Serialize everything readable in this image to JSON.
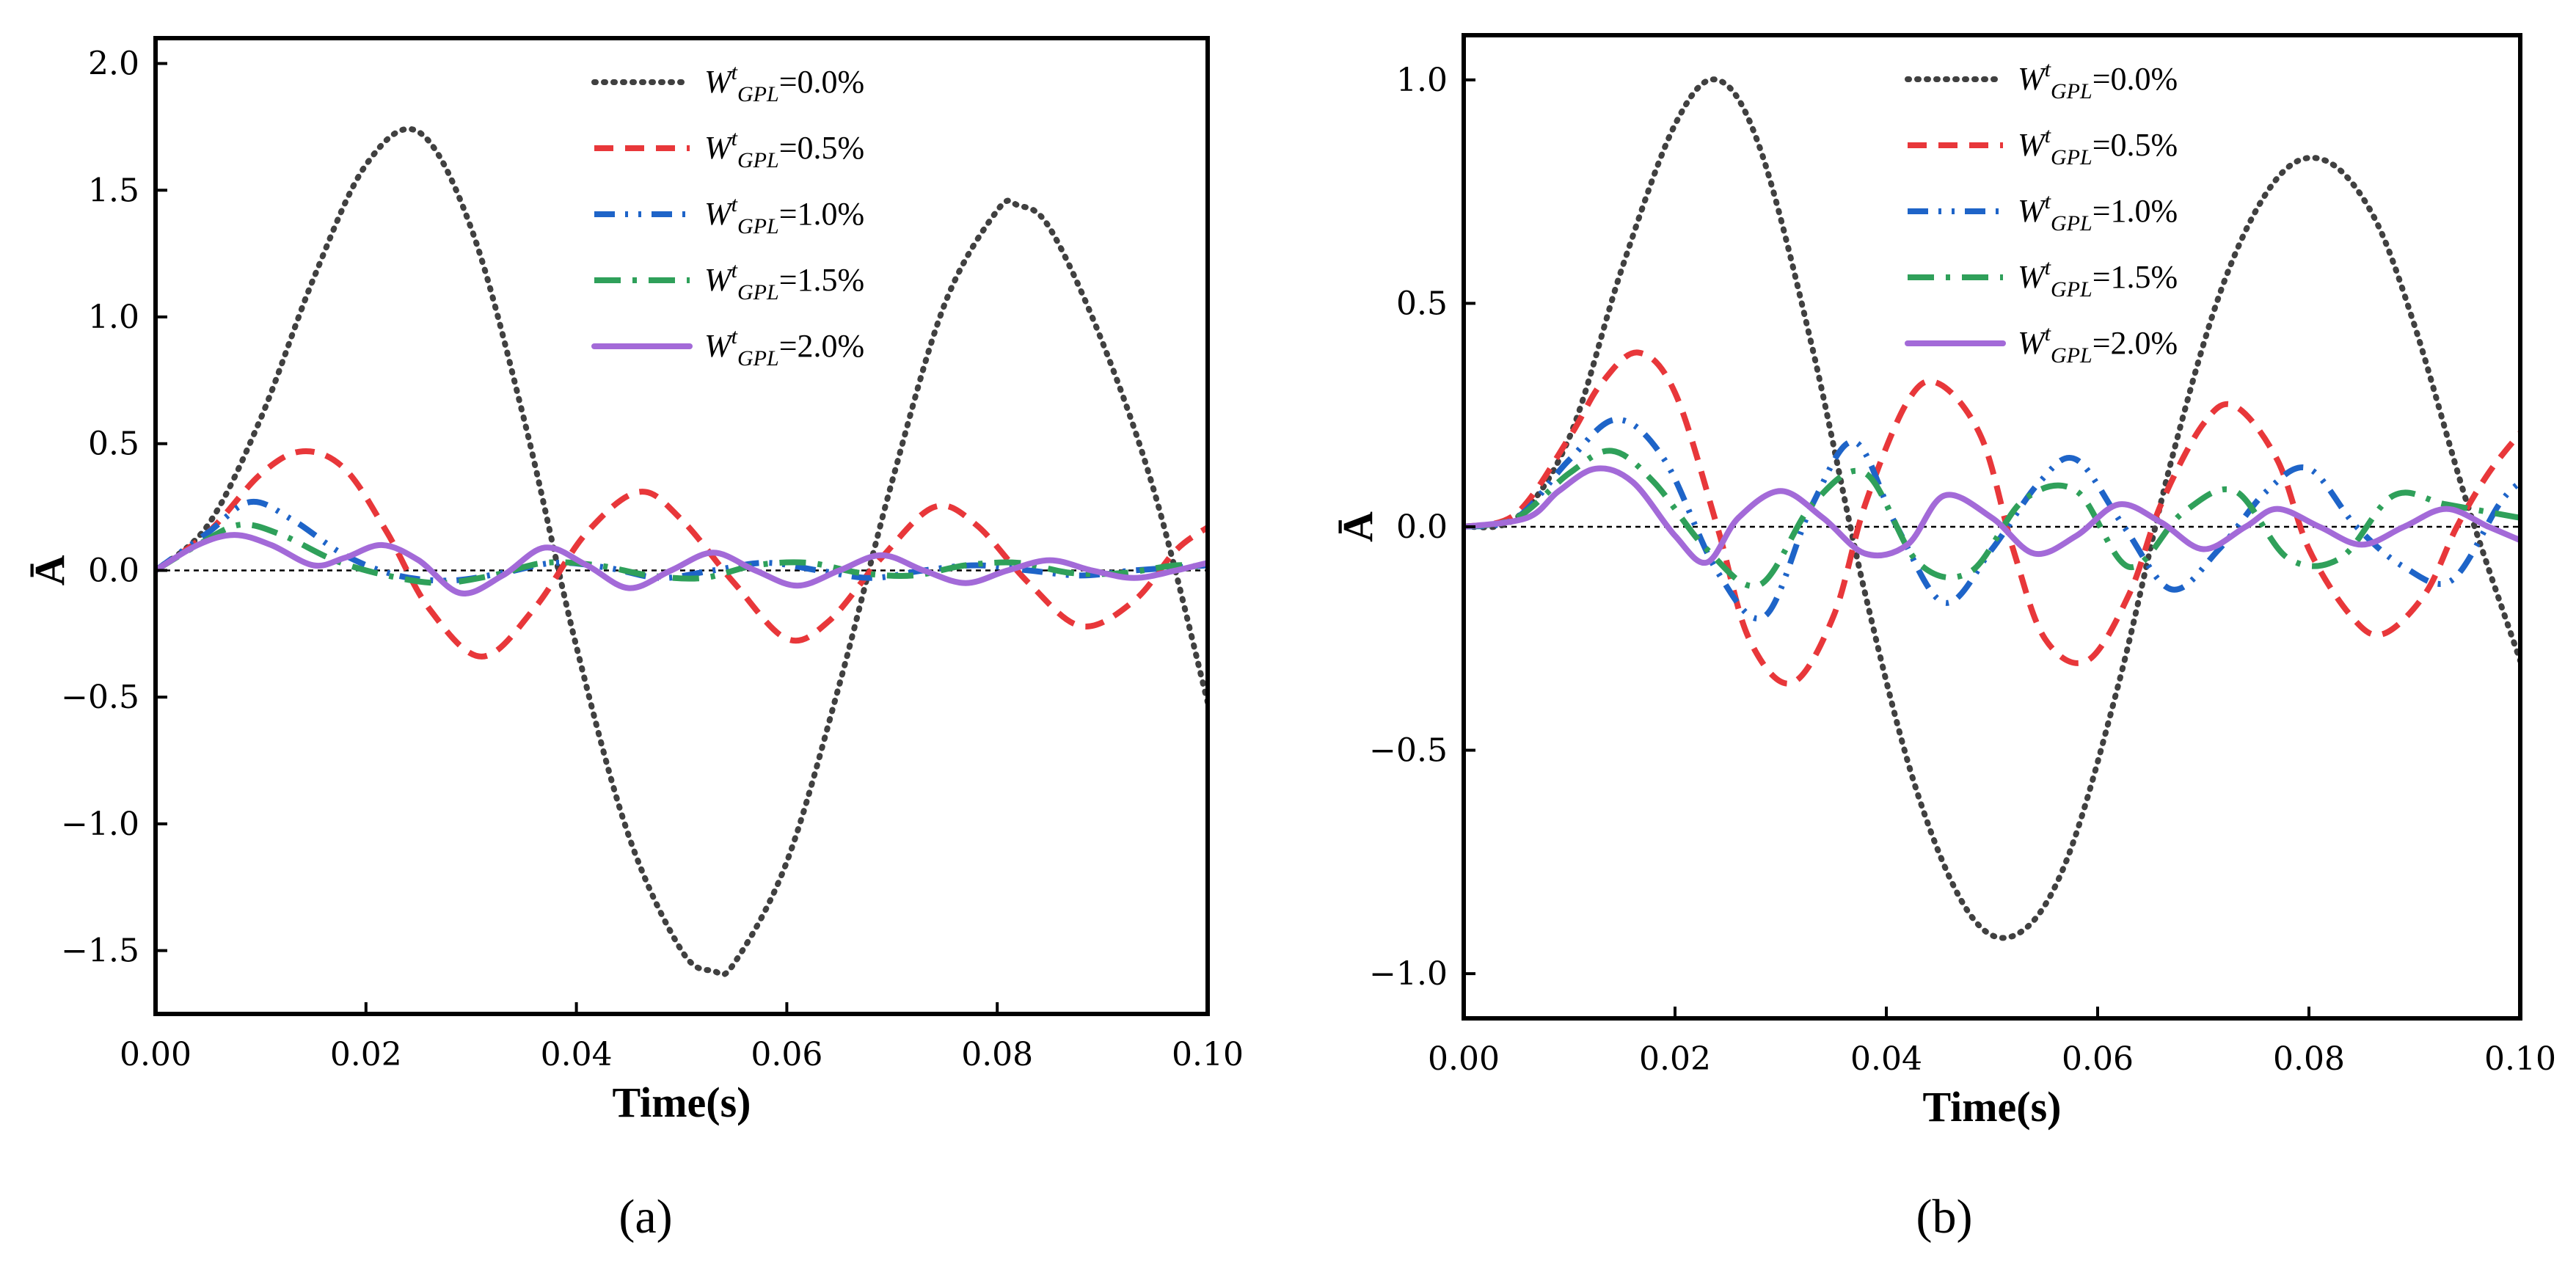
{
  "chart_data": [
    {
      "panel_label": "(a)",
      "type": "line",
      "xlabel": "Time(s)",
      "ylabel": "Ā",
      "xlim": [
        0.0,
        0.1
      ],
      "ylim": [
        -1.75,
        2.1
      ],
      "xticks": [
        "0.00",
        "0.02",
        "0.04",
        "0.06",
        "0.08",
        "0.10"
      ],
      "yticks": [
        "2.0",
        "1.5",
        "1.0",
        "0.5",
        "0.0",
        "-0.5",
        "-1.0",
        "-1.5"
      ],
      "zero_reference_line": true,
      "legend_placement": "top-center",
      "series": [
        {
          "name": "W^t_GPL=0.0%",
          "base": "W",
          "sup": "t",
          "sub": "GPL",
          "suffix": "=0.0%",
          "color": "#404040",
          "style": "dotted",
          "x": [
            0.0,
            0.005,
            0.01,
            0.015,
            0.02,
            0.025,
            0.03,
            0.035,
            0.04,
            0.045,
            0.05,
            0.053,
            0.055,
            0.06,
            0.065,
            0.07,
            0.075,
            0.08,
            0.082,
            0.085,
            0.09,
            0.095,
            0.1
          ],
          "y": [
            0.0,
            0.18,
            0.6,
            1.15,
            1.6,
            1.73,
            1.35,
            0.6,
            -0.3,
            -1.05,
            -1.5,
            -1.58,
            -1.55,
            -1.15,
            -0.45,
            0.35,
            1.05,
            1.42,
            1.44,
            1.35,
            0.9,
            0.3,
            -0.52
          ]
        },
        {
          "name": "W^t_GPL=0.5%",
          "base": "W",
          "sup": "t",
          "sub": "GPL",
          "suffix": "=0.5%",
          "color": "#e8373a",
          "style": "dashed",
          "x": [
            0.0,
            0.005,
            0.01,
            0.014,
            0.018,
            0.022,
            0.026,
            0.031,
            0.036,
            0.041,
            0.046,
            0.05,
            0.055,
            0.06,
            0.064,
            0.069,
            0.074,
            0.078,
            0.083,
            0.088,
            0.093,
            0.097,
            0.1
          ],
          "y": [
            0.0,
            0.15,
            0.38,
            0.47,
            0.4,
            0.15,
            -0.15,
            -0.34,
            -0.15,
            0.15,
            0.31,
            0.2,
            -0.05,
            -0.27,
            -0.2,
            0.05,
            0.25,
            0.18,
            -0.05,
            -0.22,
            -0.12,
            0.08,
            0.17
          ]
        },
        {
          "name": "W^t_GPL=1.0%",
          "base": "W",
          "sup": "t",
          "sub": "GPL",
          "suffix": "=1.0%",
          "color": "#1e64c8",
          "style": "dashdotdot",
          "x": [
            0.0,
            0.005,
            0.009,
            0.013,
            0.018,
            0.023,
            0.028,
            0.033,
            0.038,
            0.043,
            0.048,
            0.053,
            0.058,
            0.063,
            0.068,
            0.073,
            0.078,
            0.083,
            0.088,
            0.093,
            0.1
          ],
          "y": [
            0.0,
            0.15,
            0.27,
            0.2,
            0.06,
            -0.02,
            -0.04,
            -0.01,
            0.03,
            0.01,
            -0.03,
            0.0,
            0.03,
            0.0,
            -0.03,
            0.0,
            0.02,
            0.0,
            -0.02,
            0.0,
            0.02
          ]
        },
        {
          "name": "W^t_GPL=1.5%",
          "base": "W",
          "sup": "t",
          "sub": "GPL",
          "suffix": "=1.5%",
          "color": "#2fa05a",
          "style": "dashdot",
          "x": [
            0.0,
            0.004,
            0.008,
            0.012,
            0.017,
            0.022,
            0.027,
            0.032,
            0.037,
            0.042,
            0.047,
            0.052,
            0.057,
            0.062,
            0.067,
            0.072,
            0.077,
            0.082,
            0.087,
            0.092,
            0.097,
            0.1
          ],
          "y": [
            0.0,
            0.1,
            0.18,
            0.14,
            0.04,
            -0.02,
            -0.05,
            -0.02,
            0.03,
            0.02,
            -0.02,
            -0.03,
            0.02,
            0.03,
            -0.01,
            -0.02,
            0.02,
            0.03,
            -0.01,
            -0.01,
            0.02,
            0.01
          ]
        },
        {
          "name": "W^t_GPL=2.0%",
          "base": "W",
          "sup": "t",
          "sub": "GPL",
          "suffix": "=2.0%",
          "color": "#a36ad8",
          "style": "solid",
          "x": [
            0.0,
            0.004,
            0.0075,
            0.011,
            0.015,
            0.018,
            0.0215,
            0.025,
            0.029,
            0.033,
            0.037,
            0.041,
            0.045,
            0.049,
            0.053,
            0.057,
            0.061,
            0.065,
            0.069,
            0.073,
            0.077,
            0.081,
            0.085,
            0.089,
            0.093,
            0.097,
            0.1
          ],
          "y": [
            0.0,
            0.1,
            0.14,
            0.1,
            0.02,
            0.05,
            0.1,
            0.04,
            -0.09,
            -0.02,
            0.09,
            0.02,
            -0.07,
            0.0,
            0.07,
            0.0,
            -0.06,
            0.0,
            0.06,
            0.0,
            -0.05,
            0.0,
            0.04,
            0.0,
            -0.03,
            0.0,
            0.03
          ]
        }
      ]
    },
    {
      "panel_label": "(b)",
      "type": "line",
      "xlabel": "Time(s)",
      "ylabel": "Ā",
      "xlim": [
        0.0,
        0.1
      ],
      "ylim": [
        -1.1,
        1.1
      ],
      "xticks": [
        "0.00",
        "0.02",
        "0.04",
        "0.06",
        "0.08",
        "0.10"
      ],
      "yticks": [
        "1.0",
        "0.5",
        "0.0",
        "-0.5",
        "-1.0"
      ],
      "zero_reference_line": true,
      "legend_placement": "top-center",
      "series": [
        {
          "name": "W^t_GPL=0.0%",
          "base": "W",
          "sup": "t",
          "sub": "GPL",
          "suffix": "=0.0%",
          "color": "#404040",
          "style": "dotted",
          "x": [
            0.0,
            0.005,
            0.01,
            0.015,
            0.02,
            0.024,
            0.028,
            0.033,
            0.038,
            0.043,
            0.048,
            0.0525,
            0.057,
            0.062,
            0.067,
            0.072,
            0.077,
            0.0815,
            0.086,
            0.09,
            0.095,
            0.1
          ],
          "y": [
            0.0,
            0.02,
            0.2,
            0.58,
            0.9,
            1.0,
            0.85,
            0.4,
            -0.15,
            -0.6,
            -0.87,
            -0.91,
            -0.75,
            -0.35,
            0.15,
            0.55,
            0.78,
            0.82,
            0.7,
            0.45,
            0.05,
            -0.3
          ]
        },
        {
          "name": "W^t_GPL=0.5%",
          "base": "W",
          "sup": "t",
          "sub": "GPL",
          "suffix": "=0.5%",
          "color": "#e8373a",
          "style": "dashed",
          "x": [
            0.0,
            0.005,
            0.01,
            0.013,
            0.0165,
            0.02,
            0.024,
            0.027,
            0.031,
            0.035,
            0.038,
            0.042,
            0.045,
            0.049,
            0.052,
            0.055,
            0.059,
            0.063,
            0.066,
            0.07,
            0.073,
            0.077,
            0.08,
            0.084,
            0.087,
            0.091,
            0.094,
            0.097,
            0.1
          ],
          "y": [
            0.0,
            0.03,
            0.2,
            0.32,
            0.39,
            0.3,
            0.0,
            -0.25,
            -0.35,
            -0.2,
            0.05,
            0.28,
            0.32,
            0.2,
            -0.05,
            -0.25,
            -0.3,
            -0.15,
            0.05,
            0.23,
            0.27,
            0.15,
            -0.05,
            -0.2,
            -0.24,
            -0.15,
            0.0,
            0.12,
            0.21
          ]
        },
        {
          "name": "W^t_GPL=1.0%",
          "base": "W",
          "sup": "t",
          "sub": "GPL",
          "suffix": "=1.0%",
          "color": "#1e64c8",
          "style": "dashdotdot",
          "x": [
            0.0,
            0.005,
            0.01,
            0.0145,
            0.019,
            0.024,
            0.0285,
            0.033,
            0.037,
            0.041,
            0.0455,
            0.05,
            0.0545,
            0.058,
            0.0625,
            0.067,
            0.0715,
            0.076,
            0.08,
            0.0845,
            0.089,
            0.0935,
            0.098,
            0.1
          ],
          "y": [
            0.0,
            0.02,
            0.15,
            0.24,
            0.15,
            -0.1,
            -0.2,
            0.05,
            0.19,
            0.0,
            -0.17,
            -0.05,
            0.1,
            0.15,
            0.0,
            -0.14,
            -0.05,
            0.08,
            0.13,
            0.0,
            -0.09,
            -0.12,
            0.05,
            0.1
          ]
        },
        {
          "name": "W^t_GPL=1.5%",
          "base": "W",
          "sup": "t",
          "sub": "GPL",
          "suffix": "=1.5%",
          "color": "#2fa05a",
          "style": "dashdot",
          "x": [
            0.0,
            0.005,
            0.01,
            0.014,
            0.018,
            0.023,
            0.028,
            0.033,
            0.038,
            0.043,
            0.048,
            0.053,
            0.058,
            0.063,
            0.068,
            0.073,
            0.078,
            0.083,
            0.088,
            0.093,
            0.1
          ],
          "y": [
            0.0,
            0.02,
            0.12,
            0.17,
            0.1,
            -0.05,
            -0.13,
            0.05,
            0.12,
            -0.08,
            -0.1,
            0.06,
            0.08,
            -0.09,
            0.03,
            0.08,
            -0.07,
            -0.07,
            0.07,
            0.05,
            0.02
          ]
        },
        {
          "name": "W^t_GPL=2.0%",
          "base": "W",
          "sup": "t",
          "sub": "GPL",
          "suffix": "=2.0%",
          "color": "#a36ad8",
          "style": "solid",
          "x": [
            0.0,
            0.006,
            0.009,
            0.0125,
            0.016,
            0.02,
            0.023,
            0.026,
            0.03,
            0.034,
            0.038,
            0.042,
            0.0455,
            0.05,
            0.054,
            0.058,
            0.062,
            0.066,
            0.07,
            0.074,
            0.077,
            0.081,
            0.085,
            0.089,
            0.093,
            0.097,
            0.1
          ],
          "y": [
            0.0,
            0.02,
            0.08,
            0.13,
            0.1,
            -0.02,
            -0.08,
            0.02,
            0.08,
            0.02,
            -0.06,
            -0.04,
            0.07,
            0.02,
            -0.06,
            -0.02,
            0.05,
            0.01,
            -0.05,
            0.0,
            0.04,
            0.0,
            -0.04,
            0.0,
            0.04,
            0.0,
            -0.03
          ]
        }
      ]
    }
  ]
}
